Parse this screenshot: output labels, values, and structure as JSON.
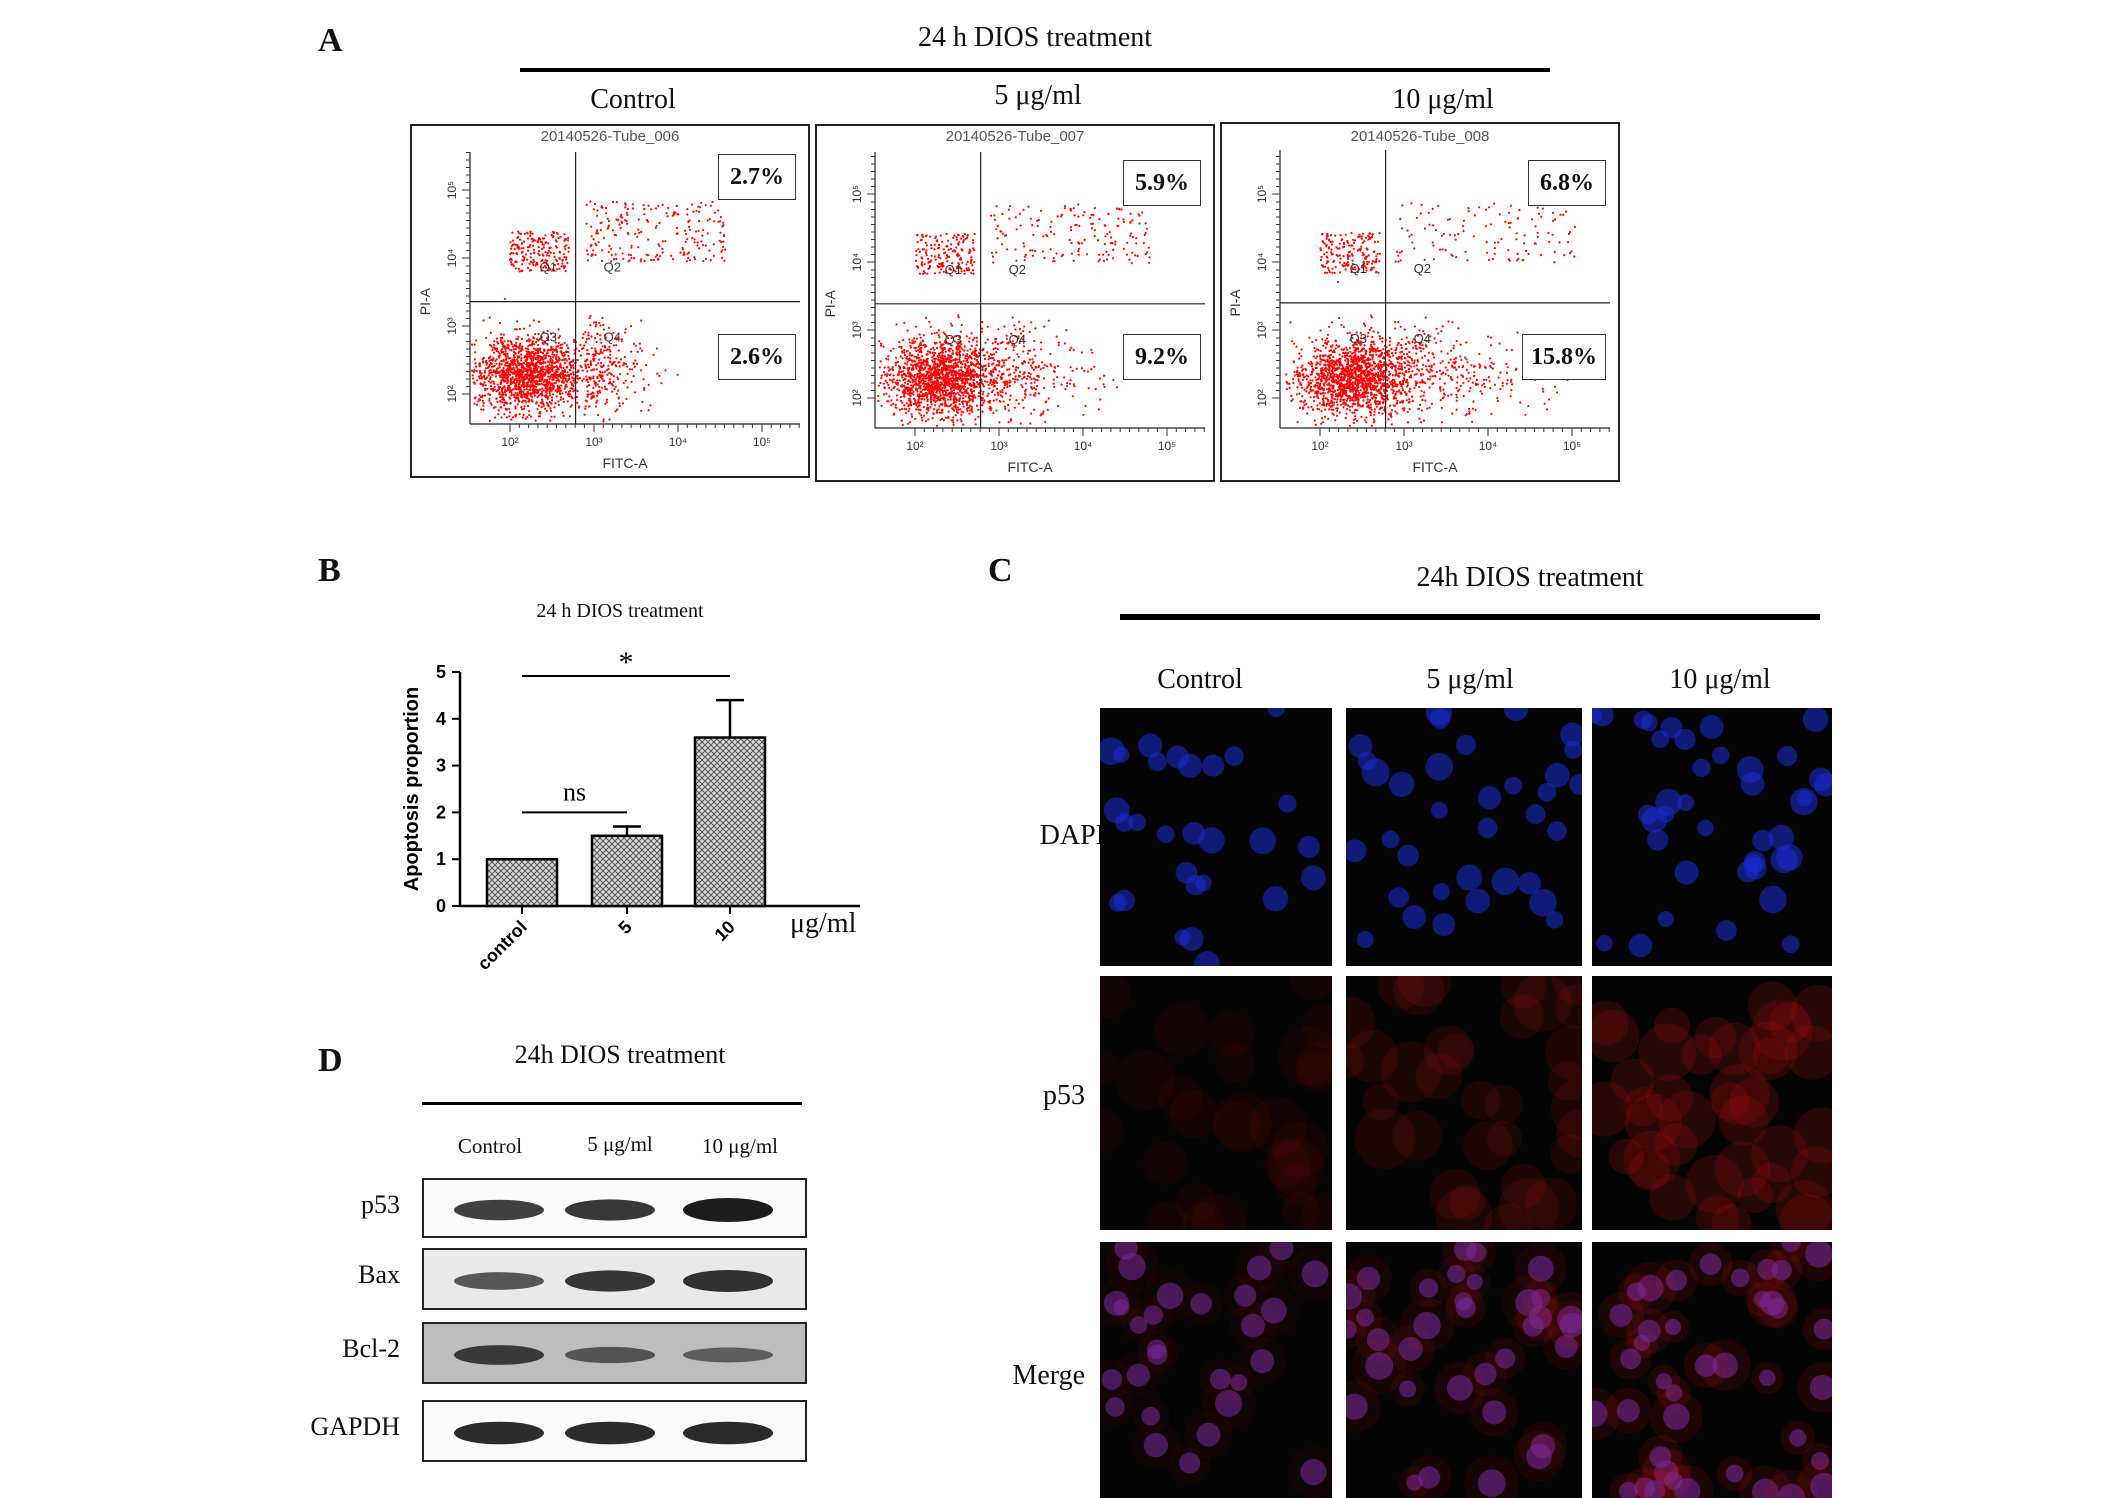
{
  "panel_a": {
    "letter": "A",
    "header": "24 h  DIOS  treatment",
    "plots": [
      {
        "condition": "Control",
        "tube": "20140526-Tube_006",
        "upper_pct": "2.7%",
        "lower_pct": "2.6%"
      },
      {
        "condition": "5 μg/ml",
        "tube": "20140526-Tube_007",
        "upper_pct": "5.9%",
        "lower_pct": "9.2%"
      },
      {
        "condition": "10 μg/ml",
        "tube": "20140526-Tube_008",
        "upper_pct": "6.8%",
        "lower_pct": "15.8%"
      }
    ],
    "x_axis_label": "FITC-A",
    "y_axis_label": "PI-A",
    "quadrants": [
      "Q1",
      "Q2",
      "Q3",
      "Q4"
    ],
    "x_ticks": [
      "10²",
      "10³",
      "10⁴",
      "10⁵"
    ],
    "y_ticks": [
      "10²",
      "10³",
      "10⁴",
      "10⁵"
    ],
    "dot_color": "#ff0000"
  },
  "panel_b": {
    "letter": "B",
    "unit_label": "μg/ml",
    "chart_data": {
      "type": "bar",
      "title": "24 h DIOS treatment",
      "categories": [
        "control",
        "5",
        "10"
      ],
      "values": [
        1.0,
        1.5,
        3.6
      ],
      "errors": [
        0.0,
        0.2,
        0.8
      ],
      "ylabel": "Apoptosis proportion",
      "xlabel": "",
      "ylim": [
        0,
        5
      ],
      "yticks": [
        "0",
        "1",
        "2",
        "3",
        "4",
        "5"
      ],
      "significance": [
        {
          "from": "control",
          "to": "5",
          "label": "ns"
        },
        {
          "from": "control",
          "to": "10",
          "label": "*"
        }
      ]
    }
  },
  "panel_c": {
    "letter": "C",
    "header": "24h  DIOS  treatment",
    "columns": [
      "Control",
      "5 μg/ml",
      "10 μg/ml"
    ],
    "rows": [
      "DAPI",
      "p53",
      "Merge"
    ],
    "colors": {
      "dapi": "#1a2bd6",
      "p53": "#c01010",
      "merge": "#7a2aa0"
    }
  },
  "panel_d": {
    "letter": "D",
    "header": "24h DIOS treatment",
    "columns": [
      "Control",
      "5 μg/ml",
      "10 μg/ml"
    ],
    "rows": [
      {
        "name": "p53",
        "intensities": [
          0.75,
          0.8,
          1.0
        ]
      },
      {
        "name": "Bax",
        "intensities": [
          0.55,
          0.8,
          0.85
        ]
      },
      {
        "name": "Bcl-2",
        "intensities": [
          0.7,
          0.45,
          0.35
        ]
      },
      {
        "name": "GAPDH",
        "intensities": [
          0.9,
          0.9,
          0.9
        ]
      }
    ]
  }
}
